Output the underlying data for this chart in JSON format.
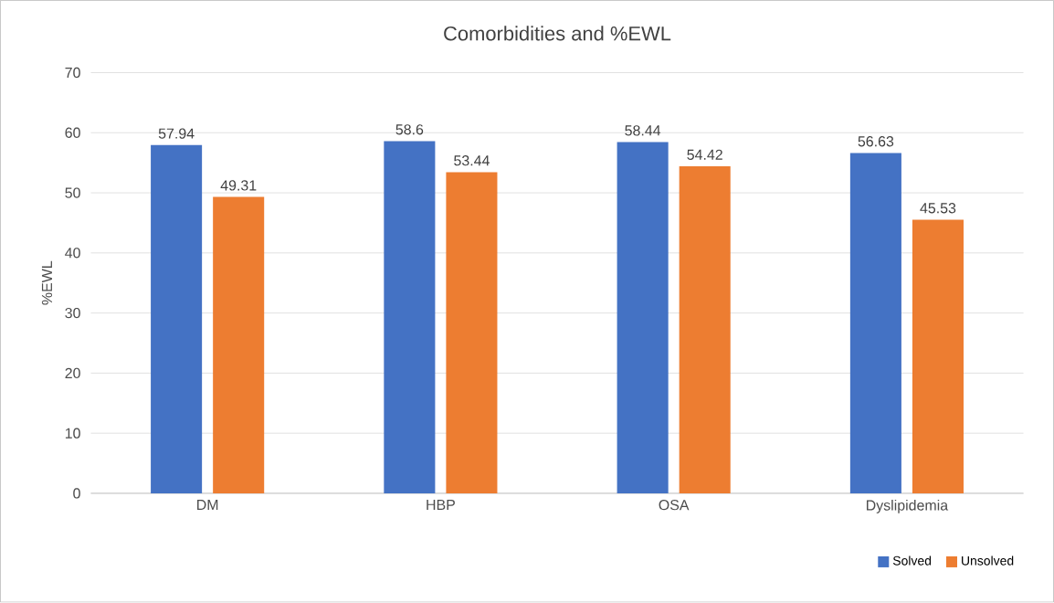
{
  "chart_data": {
    "type": "bar",
    "title": "Comorbidities and %EWL",
    "ylabel": "%EWL",
    "categories": [
      "DM",
      "HBP",
      "OSA",
      "Dyslipidemia"
    ],
    "series": [
      {
        "name": "Solved",
        "color": "#4472c4",
        "values": [
          57.94,
          58.6,
          58.44,
          56.63
        ]
      },
      {
        "name": "Unsolved",
        "color": "#ed7d31",
        "values": [
          49.31,
          53.44,
          54.42,
          45.53
        ]
      }
    ],
    "ylim": [
      0,
      70
    ],
    "yticks": [
      0,
      10,
      20,
      30,
      40,
      50,
      60,
      70
    ],
    "grid": "y",
    "legend": "bottom right",
    "data_labels": true
  }
}
